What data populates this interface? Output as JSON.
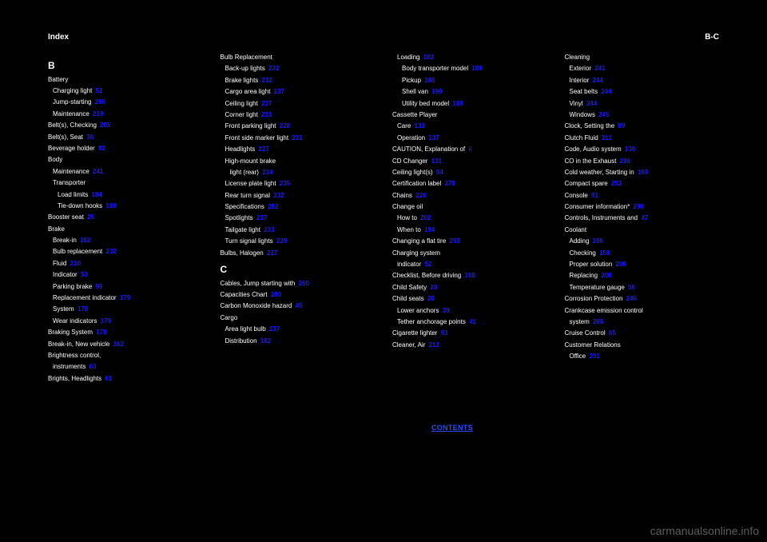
{
  "header": {
    "left": "Index",
    "right": "B-C"
  },
  "letters": {
    "b": "B",
    "c": "C"
  },
  "col1": [
    {
      "label": "Battery",
      "page": "",
      "cls": ""
    },
    {
      "label": "Charging light",
      "page": "52",
      "cls": "sub"
    },
    {
      "label": "Jump-starting",
      "page": "260",
      "cls": "sub"
    },
    {
      "label": "Maintenance",
      "page": "219",
      "cls": "sub"
    },
    {
      "label": "Belt(s), Checking",
      "page": "205",
      "cls": ""
    },
    {
      "label": "Belt(s), Seat",
      "page": "36",
      "cls": ""
    },
    {
      "label": "Beverage holder",
      "page": "92",
      "cls": ""
    },
    {
      "label": "Body",
      "page": "",
      "cls": ""
    },
    {
      "label": "Maintenance",
      "page": "241",
      "cls": "sub"
    },
    {
      "label": "Transporter",
      "page": "",
      "cls": "sub"
    },
    {
      "label": "Load limits",
      "page": "184",
      "cls": "sub2"
    },
    {
      "label": "Tie-down hooks",
      "page": "189",
      "cls": "sub2"
    },
    {
      "label": "Booster seat",
      "page": "26",
      "cls": ""
    },
    {
      "label": "Brake",
      "page": "",
      "cls": ""
    },
    {
      "label": "Break-in",
      "page": "162",
      "cls": "sub"
    },
    {
      "label": "Bulb replacement",
      "page": "232",
      "cls": "sub"
    },
    {
      "label": "Fluid",
      "page": "210",
      "cls": "sub"
    },
    {
      "label": "Indicator",
      "page": "53",
      "cls": "sub"
    },
    {
      "label": "Parking brake",
      "page": "90",
      "cls": "sub"
    },
    {
      "label": "Replacement indicator",
      "page": "179",
      "cls": "sub"
    },
    {
      "label": "System",
      "page": "178",
      "cls": "sub"
    },
    {
      "label": "Wear indicators",
      "page": "179",
      "cls": "sub"
    },
    {
      "label": "Braking System",
      "page": "178",
      "cls": ""
    },
    {
      "label": "Break-in, New vehicle",
      "page": "162",
      "cls": ""
    },
    {
      "label": "Brightness control,",
      "page": "",
      "cls": ""
    },
    {
      "label": "instruments",
      "page": "63",
      "cls": "sub"
    },
    {
      "label": "Brights, Headlights",
      "page": "61",
      "cls": ""
    }
  ],
  "col2": [
    {
      "label": "Bulb Replacement",
      "page": "",
      "cls": ""
    },
    {
      "label": "Back-up lights",
      "page": "232",
      "cls": "sub"
    },
    {
      "label": "Brake lights",
      "page": "232",
      "cls": "sub"
    },
    {
      "label": "Cargo area light",
      "page": "237",
      "cls": "sub"
    },
    {
      "label": "Ceiling light",
      "page": "237",
      "cls": "sub"
    },
    {
      "label": "Corner light",
      "page": "231",
      "cls": "sub"
    },
    {
      "label": "Front parking light",
      "page": "228",
      "cls": "sub"
    },
    {
      "label": "Front side marker light",
      "page": "231",
      "cls": "sub"
    },
    {
      "label": "Headlights",
      "page": "227",
      "cls": "sub"
    },
    {
      "label": "High-mount brake",
      "page": "",
      "cls": "sub"
    },
    {
      "label": "light (rear)",
      "page": "234",
      "cls": "sub2"
    },
    {
      "label": "License plate light",
      "page": "235",
      "cls": "sub"
    },
    {
      "label": "Rear turn signal",
      "page": "232",
      "cls": "sub"
    },
    {
      "label": "Specifications",
      "page": "282",
      "cls": "sub"
    },
    {
      "label": "Spotlights",
      "page": "237",
      "cls": "sub"
    },
    {
      "label": "Tailgate light",
      "page": "233",
      "cls": "sub"
    },
    {
      "label": "Turn signal lights",
      "page": "229",
      "cls": "sub"
    },
    {
      "label": "Bulbs, Halogen",
      "page": "227",
      "cls": ""
    },
    {
      "label": "Cables, Jump starting with",
      "page": "260",
      "cls": ""
    },
    {
      "label": "Capacities Chart",
      "page": "280",
      "cls": ""
    },
    {
      "label": "Carbon Monoxide hazard",
      "page": "45",
      "cls": ""
    },
    {
      "label": "Cargo",
      "page": "",
      "cls": ""
    },
    {
      "label": "Area light bulb",
      "page": "237",
      "cls": "sub"
    },
    {
      "label": "Distribution",
      "page": "182",
      "cls": "sub"
    }
  ],
  "col3": [
    {
      "label": "Loading",
      "page": "182",
      "cls": "sub"
    },
    {
      "label": "Body transporter model",
      "page": "189",
      "cls": "sub2"
    },
    {
      "label": "Pickup",
      "page": "186",
      "cls": "sub2"
    },
    {
      "label": "Shell van",
      "page": "190",
      "cls": "sub2"
    },
    {
      "label": "Utility bed model",
      "page": "189",
      "cls": "sub2"
    },
    {
      "label": "Cassette Player",
      "page": "",
      "cls": ""
    },
    {
      "label": "Care",
      "page": "133",
      "cls": "sub"
    },
    {
      "label": "Operation",
      "page": "137",
      "cls": "sub"
    },
    {
      "label": "CAUTION, Explanation of",
      "page": "ii",
      "cls": ""
    },
    {
      "label": "CD Changer",
      "page": "131",
      "cls": ""
    },
    {
      "label": "Ceiling light(s)",
      "page": "94",
      "cls": ""
    },
    {
      "label": "Certification label",
      "page": "278",
      "cls": ""
    },
    {
      "label": "Chains",
      "page": "226",
      "cls": ""
    },
    {
      "label": "Change oil",
      "page": "",
      "cls": ""
    },
    {
      "label": "How to",
      "page": "202",
      "cls": "sub"
    },
    {
      "label": "When to",
      "page": "194",
      "cls": "sub"
    },
    {
      "label": "Changing a flat tire",
      "page": "253",
      "cls": ""
    },
    {
      "label": "Charging system",
      "page": "",
      "cls": ""
    },
    {
      "label": "indicator",
      "page": "52",
      "cls": "sub"
    },
    {
      "label": "Checklist, Before driving",
      "page": "168",
      "cls": ""
    },
    {
      "label": "Child Safety",
      "page": "20",
      "cls": ""
    },
    {
      "label": "Child seats",
      "page": "20",
      "cls": ""
    },
    {
      "label": "Lower anchors",
      "page": "39",
      "cls": "sub"
    },
    {
      "label": "Tether anchorage points",
      "page": "41",
      "cls": "sub"
    },
    {
      "label": "Cigarette lighter",
      "page": "93",
      "cls": ""
    },
    {
      "label": "Cleaner, Air",
      "page": "212",
      "cls": ""
    }
  ],
  "col4": [
    {
      "label": "Cleaning",
      "page": "",
      "cls": ""
    },
    {
      "label": "Exterior",
      "page": "241",
      "cls": "sub"
    },
    {
      "label": "Interior",
      "page": "244",
      "cls": "sub"
    },
    {
      "label": "Seat belts",
      "page": "244",
      "cls": "sub"
    },
    {
      "label": "Vinyl",
      "page": "244",
      "cls": "sub"
    },
    {
      "label": "Windows",
      "page": "245",
      "cls": "sub"
    },
    {
      "label": "Clock, Setting the",
      "page": "89",
      "cls": ""
    },
    {
      "label": "Clutch Fluid",
      "page": "211",
      "cls": ""
    },
    {
      "label": "Code, Audio system",
      "page": "136",
      "cls": ""
    },
    {
      "label": "CO in the Exhaust",
      "page": "286",
      "cls": ""
    },
    {
      "label": "Cold weather, Starting in",
      "page": "169",
      "cls": ""
    },
    {
      "label": "Compact spare",
      "page": "252",
      "cls": ""
    },
    {
      "label": "Console",
      "page": "91",
      "cls": ""
    },
    {
      "label": "Consumer information*",
      "page": "290",
      "cls": ""
    },
    {
      "label": "Controls, Instruments and",
      "page": "47",
      "cls": ""
    },
    {
      "label": "Coolant",
      "page": "",
      "cls": ""
    },
    {
      "label": "Adding",
      "page": "206",
      "cls": "sub"
    },
    {
      "label": "Checking",
      "page": "158",
      "cls": "sub"
    },
    {
      "label": "Proper solution",
      "page": "206",
      "cls": "sub"
    },
    {
      "label": "Replacing",
      "page": "208",
      "cls": "sub"
    },
    {
      "label": "Temperature gauge",
      "page": "56",
      "cls": "sub"
    },
    {
      "label": "Corrosion Protection",
      "page": "246",
      "cls": ""
    },
    {
      "label": "Crankcase emission control",
      "page": "",
      "cls": ""
    },
    {
      "label": "system",
      "page": "286",
      "cls": "sub"
    },
    {
      "label": "Cruise Control",
      "page": "65",
      "cls": ""
    },
    {
      "label": "Customer Relations",
      "page": "",
      "cls": ""
    },
    {
      "label": "Office",
      "page": "291",
      "cls": "sub"
    }
  ],
  "backlink": "CONTENTS",
  "watermark": "carmanualsonline.info"
}
